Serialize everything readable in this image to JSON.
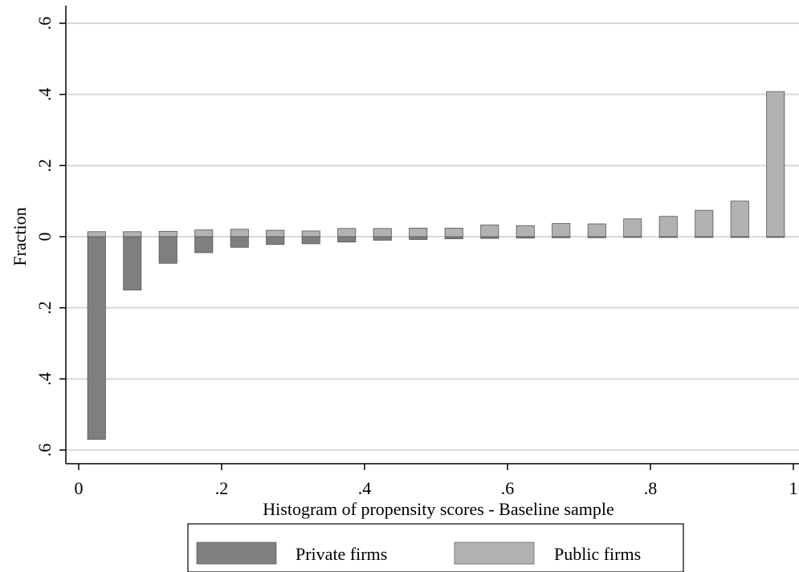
{
  "chart_data": {
    "type": "bar",
    "title": "",
    "xlabel": "Histogram of propensity scores - Baseline sample",
    "ylabel": "Fraction",
    "xlim": [
      0,
      1
    ],
    "ylim": [
      -0.6,
      0.6
    ],
    "x_ticks": [
      {
        "value": 0,
        "label": "0"
      },
      {
        "value": 0.2,
        "label": ".2"
      },
      {
        "value": 0.4,
        "label": ".4"
      },
      {
        "value": 0.6,
        "label": ".6"
      },
      {
        "value": 0.8,
        "label": ".8"
      },
      {
        "value": 1,
        "label": "1"
      }
    ],
    "y_ticks": [
      {
        "value": 0.6,
        "label": ".6"
      },
      {
        "value": 0.4,
        "label": ".4"
      },
      {
        "value": 0.2,
        "label": ".2"
      },
      {
        "value": 0,
        "label": "0"
      },
      {
        "value": -0.2,
        "label": ".2"
      },
      {
        "value": -0.4,
        "label": ".4"
      },
      {
        "value": -0.6,
        "label": ".6"
      }
    ],
    "grid": true,
    "legend_position": "bottom",
    "bin_centers": [
      0.025,
      0.075,
      0.125,
      0.175,
      0.225,
      0.275,
      0.325,
      0.375,
      0.425,
      0.475,
      0.525,
      0.575,
      0.625,
      0.675,
      0.725,
      0.775,
      0.825,
      0.875,
      0.925,
      0.975
    ],
    "bin_width": 0.025,
    "series": [
      {
        "name": "Private firms",
        "color": "#7f7f7f",
        "direction": "down",
        "values": [
          0.57,
          0.15,
          0.075,
          0.045,
          0.03,
          0.022,
          0.02,
          0.015,
          0.01,
          0.008,
          0.006,
          0.005,
          0.004,
          0.003,
          0.003,
          0.002,
          0.002,
          0.002,
          0.001,
          0.002
        ]
      },
      {
        "name": "Public firms",
        "color": "#b2b2b2",
        "direction": "up",
        "values": [
          0.014,
          0.014,
          0.015,
          0.019,
          0.021,
          0.018,
          0.016,
          0.023,
          0.023,
          0.024,
          0.024,
          0.033,
          0.031,
          0.037,
          0.036,
          0.05,
          0.057,
          0.074,
          0.1,
          0.408
        ]
      }
    ]
  }
}
